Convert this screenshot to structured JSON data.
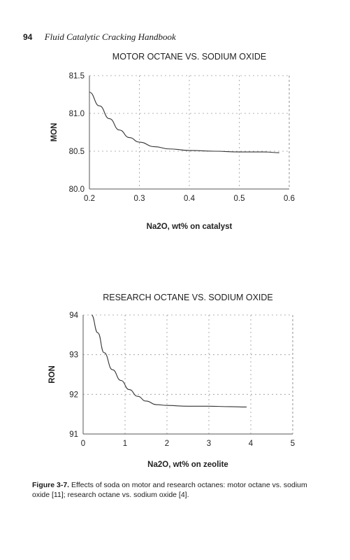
{
  "page_header": {
    "page_number": "94",
    "running_title": "Fluid Catalytic Cracking Handbook"
  },
  "chart_data": [
    {
      "type": "line",
      "title": "MOTOR OCTANE VS. SODIUM OXIDE",
      "xlabel": "Na2O, wt% on catalyst",
      "ylabel": "MON",
      "xlim": [
        0.2,
        0.6
      ],
      "ylim": [
        80.0,
        81.5
      ],
      "x_ticks": [
        "0.2",
        "0.3",
        "0.4",
        "0.5",
        "0.6"
      ],
      "y_ticks": [
        "81.5",
        "81.0",
        "80.5",
        "80.0"
      ],
      "grid": true,
      "series": [
        {
          "x": [
            0.2,
            0.22,
            0.24,
            0.26,
            0.28,
            0.3,
            0.33,
            0.36,
            0.4,
            0.45,
            0.5,
            0.55,
            0.58
          ],
          "y": [
            81.28,
            81.1,
            80.93,
            80.78,
            80.68,
            80.62,
            80.56,
            80.53,
            80.51,
            80.5,
            80.49,
            80.49,
            80.48
          ]
        }
      ]
    },
    {
      "type": "line",
      "title": "RESEARCH OCTANE VS. SODIUM OXIDE",
      "xlabel": "Na2O, wt% on zeolite",
      "ylabel": "RON",
      "xlim": [
        0,
        5
      ],
      "ylim": [
        91,
        94
      ],
      "x_ticks": [
        "0",
        "1",
        "2",
        "3",
        "4",
        "5"
      ],
      "y_ticks": [
        "94",
        "93",
        "92",
        "91"
      ],
      "grid": true,
      "series": [
        {
          "x": [
            0.2,
            0.35,
            0.5,
            0.7,
            0.9,
            1.1,
            1.3,
            1.5,
            1.75,
            2.0,
            2.5,
            3.0,
            3.5,
            3.9
          ],
          "y": [
            94.0,
            93.55,
            93.05,
            92.62,
            92.35,
            92.12,
            91.95,
            91.83,
            91.74,
            91.72,
            91.7,
            91.7,
            91.69,
            91.68
          ]
        }
      ]
    }
  ],
  "caption": {
    "label": "Figure 3-7.",
    "text": " Effects of soda on motor and research octanes: motor octane vs. sodium oxide [11]; research octane vs. sodium oxide [4]."
  }
}
